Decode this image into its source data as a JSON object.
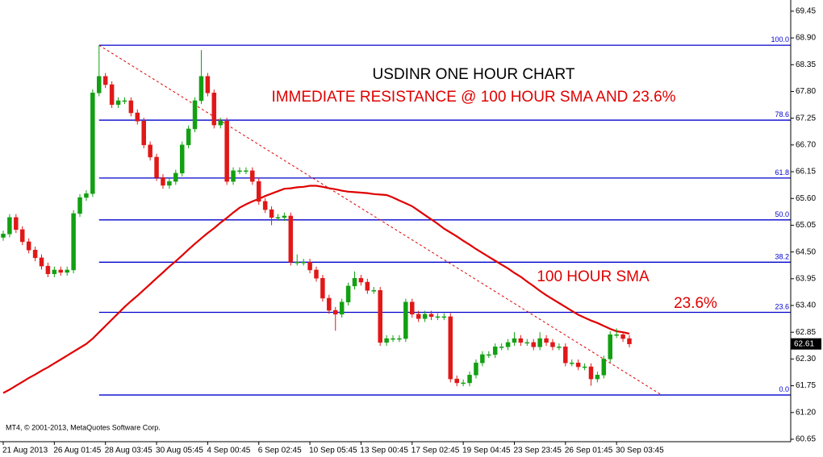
{
  "chart_data": {
    "type": "candlestick",
    "title": "USDINR ONE HOUR CHART",
    "subtitle": "IMMEDIATE RESISTANCE @ 100 HOUR SMA AND 23.6%",
    "annotations": [
      "100 HOUR SMA",
      "23.6%"
    ],
    "copyright": "MT4, © 2001-2013, MetaQuotes Software Corp.",
    "annotation_color": "#e00000",
    "categories": [
      "21 Aug 2013",
      null,
      null,
      null,
      null,
      null,
      null,
      null,
      "26 Aug 01:45",
      null,
      null,
      null,
      null,
      null,
      null,
      null,
      "28 Aug 03:45",
      null,
      null,
      null,
      null,
      null,
      null,
      null,
      "30 Aug 05:45",
      null,
      null,
      null,
      null,
      null,
      null,
      null,
      "4 Sep 00:45",
      null,
      null,
      null,
      null,
      null,
      null,
      null,
      "6 Sep 02:45",
      null,
      null,
      null,
      null,
      null,
      null,
      null,
      "10 Sep 05:45",
      null,
      null,
      null,
      null,
      null,
      null,
      null,
      "13 Sep 00:45",
      null,
      null,
      null,
      null,
      null,
      null,
      null,
      "17 Sep 02:45",
      null,
      null,
      null,
      null,
      null,
      null,
      null,
      "19 Sep 04:45",
      null,
      null,
      null,
      null,
      null,
      null,
      null,
      "23 Sep 23:45",
      null,
      null,
      null,
      null,
      null,
      null,
      null,
      "26 Sep 01:45",
      null,
      null,
      null,
      null,
      null,
      null,
      null,
      "30 Sep 03:45",
      null,
      null
    ],
    "candles": {
      "up_color": "#12a012",
      "down_color": "#e01818",
      "open": [
        64.8,
        64.87,
        65.21,
        64.96,
        64.71,
        64.54,
        64.38,
        64.21,
        64.05,
        64.13,
        64.08,
        64.13,
        65.29,
        65.62,
        65.7,
        67.77,
        68.11,
        67.94,
        67.53,
        67.61,
        67.61,
        67.36,
        67.19,
        66.7,
        66.45,
        66.03,
        65.87,
        65.95,
        66.12,
        66.7,
        67.03,
        67.61,
        68.11,
        67.77,
        67.11,
        67.19,
        65.95,
        66.17,
        66.17,
        66.17,
        65.95,
        65.54,
        65.37,
        65.21,
        65.21,
        65.24,
        64.29,
        64.29,
        64.29,
        64.13,
        63.96,
        63.55,
        63.3,
        63.22,
        63.47,
        63.8,
        63.96,
        63.88,
        63.71,
        63.71,
        62.64,
        62.72,
        62.72,
        62.72,
        63.47,
        63.22,
        63.13,
        63.22,
        63.17,
        63.17,
        63.17,
        61.89,
        61.81,
        61.81,
        61.97,
        62.22,
        62.39,
        62.39,
        62.55,
        62.55,
        62.64,
        62.72,
        62.64,
        62.64,
        62.55,
        62.72,
        62.64,
        62.55,
        62.55,
        62.22,
        62.22,
        62.14,
        62.14,
        61.89,
        61.97,
        62.3,
        62.8,
        62.8,
        62.72
      ],
      "high": [
        64.94,
        65.28,
        65.28,
        65.03,
        64.78,
        64.61,
        64.45,
        64.28,
        64.2,
        64.2,
        64.2,
        65.36,
        65.69,
        65.77,
        67.84,
        68.75,
        68.18,
        68.01,
        67.68,
        67.68,
        67.68,
        67.43,
        67.26,
        66.77,
        66.52,
        66.1,
        66.02,
        66.19,
        66.77,
        67.1,
        67.68,
        68.65,
        68.18,
        67.84,
        67.26,
        67.26,
        66.24,
        66.24,
        66.24,
        66.24,
        66.02,
        65.61,
        65.44,
        65.28,
        65.31,
        65.31,
        64.45,
        64.36,
        64.36,
        64.2,
        64.03,
        63.62,
        63.37,
        63.54,
        63.87,
        64.1,
        64.03,
        63.95,
        63.78,
        63.78,
        62.79,
        62.79,
        62.79,
        63.54,
        63.54,
        63.29,
        63.29,
        63.29,
        63.24,
        63.24,
        63.24,
        61.96,
        61.88,
        62.04,
        62.29,
        62.46,
        62.46,
        62.62,
        62.62,
        62.71,
        62.85,
        62.79,
        62.71,
        62.71,
        62.85,
        62.79,
        62.71,
        62.62,
        62.62,
        62.29,
        62.29,
        62.21,
        62.21,
        62.04,
        62.37,
        62.87,
        62.93,
        62.87,
        62.79
      ],
      "low": [
        64.73,
        64.8,
        64.89,
        64.64,
        64.47,
        64.31,
        64.14,
        63.98,
        63.98,
        64.01,
        64.01,
        64.06,
        65.22,
        65.55,
        65.63,
        67.7,
        67.87,
        67.46,
        67.46,
        67.54,
        67.29,
        67.12,
        66.63,
        66.38,
        65.96,
        65.8,
        65.8,
        65.88,
        66.05,
        66.63,
        66.96,
        67.54,
        67.7,
        67.04,
        67.04,
        65.88,
        65.88,
        66.1,
        66.1,
        65.88,
        65.47,
        65.3,
        65.05,
        65.14,
        65.14,
        64.22,
        64.22,
        64.22,
        64.06,
        63.89,
        63.48,
        63.23,
        62.88,
        63.15,
        63.4,
        63.73,
        63.81,
        63.64,
        63.64,
        62.57,
        62.57,
        62.65,
        62.65,
        62.65,
        63.15,
        63.06,
        63.06,
        63.1,
        63.1,
        63.1,
        61.82,
        61.74,
        61.74,
        61.74,
        61.9,
        62.15,
        62.32,
        62.32,
        62.48,
        62.48,
        62.57,
        62.57,
        62.57,
        62.48,
        62.48,
        62.57,
        62.48,
        62.48,
        62.15,
        62.15,
        62.07,
        62.07,
        61.75,
        61.82,
        61.9,
        62.23,
        62.73,
        62.65,
        62.54
      ],
      "close": [
        64.87,
        65.21,
        64.96,
        64.71,
        64.54,
        64.38,
        64.21,
        64.05,
        64.13,
        64.08,
        64.13,
        65.29,
        65.62,
        65.7,
        67.77,
        68.11,
        67.94,
        67.53,
        67.61,
        67.61,
        67.36,
        67.19,
        66.7,
        66.45,
        66.03,
        65.87,
        65.95,
        66.12,
        66.7,
        67.03,
        67.61,
        68.11,
        67.77,
        67.11,
        67.19,
        65.95,
        66.17,
        66.17,
        66.17,
        65.95,
        65.54,
        65.37,
        65.21,
        65.21,
        65.24,
        64.29,
        64.29,
        64.29,
        64.13,
        63.96,
        63.55,
        63.3,
        63.22,
        63.47,
        63.8,
        63.96,
        63.88,
        63.71,
        63.71,
        62.64,
        62.72,
        62.72,
        62.72,
        63.47,
        63.22,
        63.13,
        63.22,
        63.17,
        63.17,
        63.17,
        61.89,
        61.81,
        61.81,
        61.97,
        62.22,
        62.39,
        62.39,
        62.55,
        62.55,
        62.64,
        62.72,
        62.64,
        62.64,
        62.55,
        62.72,
        62.64,
        62.55,
        62.55,
        62.22,
        62.22,
        62.14,
        62.14,
        61.89,
        61.97,
        62.3,
        62.8,
        62.8,
        62.72,
        62.61
      ]
    },
    "sma": {
      "color": "#e00000",
      "values": [
        61.6,
        61.67,
        61.75,
        61.83,
        61.91,
        61.98,
        62.06,
        62.13,
        62.21,
        62.29,
        62.37,
        62.45,
        62.53,
        62.61,
        62.72,
        62.85,
        62.98,
        63.11,
        63.24,
        63.37,
        63.49,
        63.6,
        63.72,
        63.84,
        63.96,
        64.08,
        64.2,
        64.31,
        64.43,
        64.55,
        64.67,
        64.78,
        64.89,
        64.99,
        65.1,
        65.2,
        65.31,
        65.41,
        65.48,
        65.54,
        65.59,
        65.65,
        65.7,
        65.75,
        65.8,
        65.81,
        65.83,
        65.84,
        65.86,
        65.86,
        65.84,
        65.81,
        65.79,
        65.76,
        65.74,
        65.73,
        65.72,
        65.71,
        65.69,
        65.68,
        65.67,
        65.62,
        65.56,
        65.5,
        65.44,
        65.35,
        65.26,
        65.17,
        65.08,
        64.98,
        64.9,
        64.82,
        64.73,
        64.65,
        64.56,
        64.48,
        64.4,
        64.32,
        64.24,
        64.16,
        64.07,
        63.99,
        63.89,
        63.8,
        63.7,
        63.61,
        63.53,
        63.45,
        63.37,
        63.29,
        63.21,
        63.15,
        63.09,
        63.04,
        62.98,
        62.92,
        62.87,
        62.85,
        62.82
      ]
    },
    "fib_color": "#0000cc",
    "fib_levels": [
      {
        "value": 68.75,
        "label": "100.0"
      },
      {
        "value": 67.21,
        "label": "78.6"
      },
      {
        "value": 66.02,
        "label": "61.8"
      },
      {
        "value": 65.16,
        "label": "50.0"
      },
      {
        "value": 64.29,
        "label": "38.2"
      },
      {
        "value": 63.26,
        "label": "23.6"
      },
      {
        "value": 61.56,
        "label": "0.0"
      }
    ],
    "trendline": {
      "color": "#e00000",
      "start": 68.75,
      "end": 61.56
    },
    "last_price": 62.61,
    "ylim": [
      60.6,
      69.68
    ],
    "yticks": [
      69.45,
      {
        "value": 68.9,
        "label": "68.90"
      },
      68.35,
      {
        "value": 67.8,
        "label": "67.80"
      },
      67.25,
      {
        "value": 66.7,
        "label": "66.70"
      },
      66.15,
      {
        "value": 65.6,
        "label": "65.60"
      },
      65.05,
      {
        "value": 64.5,
        "label": "64.50"
      },
      63.95,
      {
        "value": 63.4,
        "label": "63.40"
      },
      62.85,
      {
        "value": 62.3,
        "label": "62.30"
      },
      61.75,
      {
        "value": 61.2,
        "label": "61.20"
      },
      60.65
    ]
  }
}
